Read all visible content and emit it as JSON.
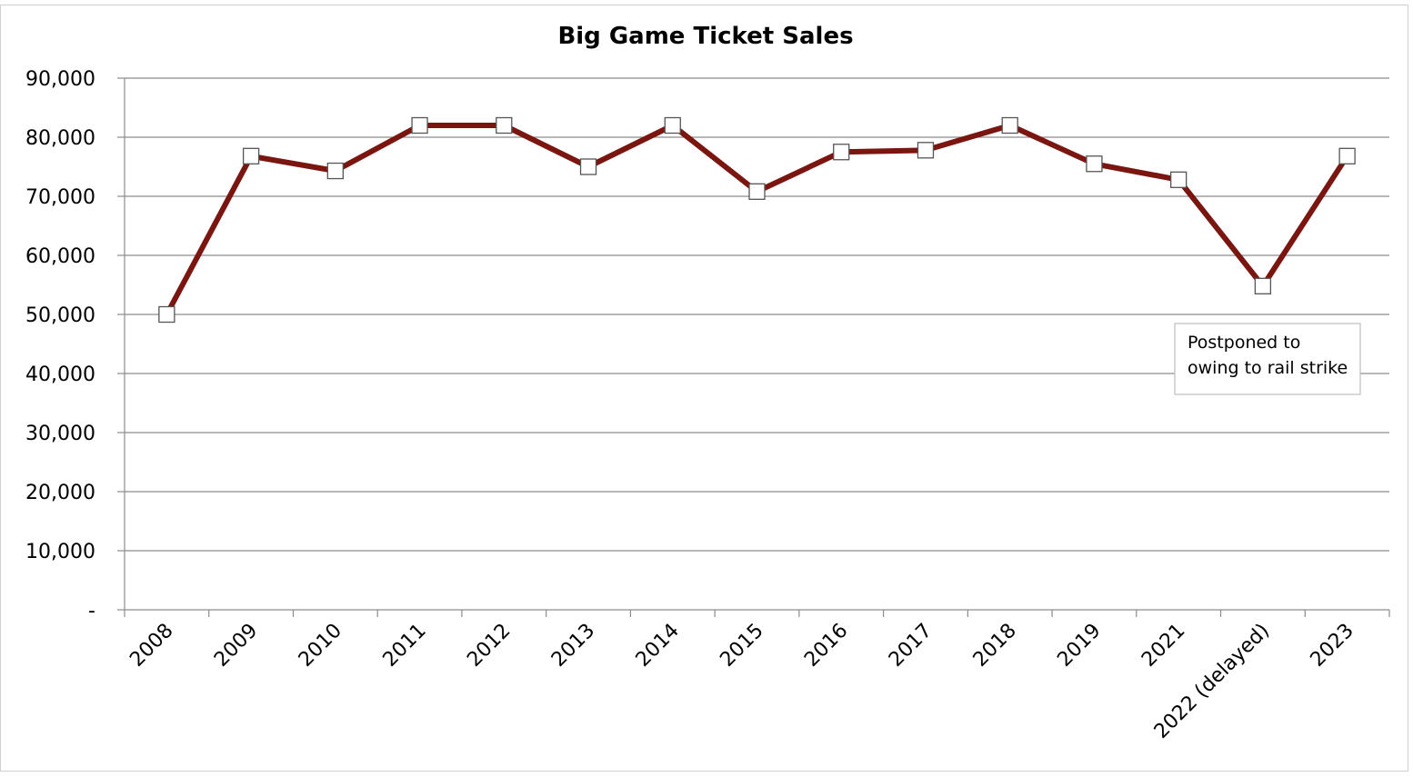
{
  "chart_data": {
    "type": "line",
    "title": "Big Game Ticket Sales",
    "xlabel": "",
    "ylabel": "",
    "categories": [
      "2008",
      "2009",
      "2010",
      "2011",
      "2012",
      "2013",
      "2014",
      "2015",
      "2016",
      "2017",
      "2018",
      "2019",
      "2021",
      "2022 (delayed)",
      "2023"
    ],
    "series": [
      {
        "values": [
          50000,
          76800,
          74300,
          82000,
          82000,
          75000,
          82000,
          70800,
          77500,
          77800,
          82000,
          75500,
          72800,
          54800,
          76800
        ]
      }
    ],
    "ylim": [
      0,
      90000
    ],
    "yticks": [
      0,
      10000,
      20000,
      30000,
      40000,
      50000,
      60000,
      70000,
      80000,
      90000
    ],
    "ytick_labels": [
      "-",
      "10,000",
      "20,000",
      "30,000",
      "40,000",
      "50,000",
      "60,000",
      "70,000",
      "80,000",
      "90,000"
    ],
    "grid": true,
    "legend": "none",
    "line_color": "#7a1510",
    "marker": "square",
    "marker_fill": "#ffffff",
    "annotation": {
      "lines": [
        "Postponed to",
        "owing to rail strike"
      ]
    }
  }
}
